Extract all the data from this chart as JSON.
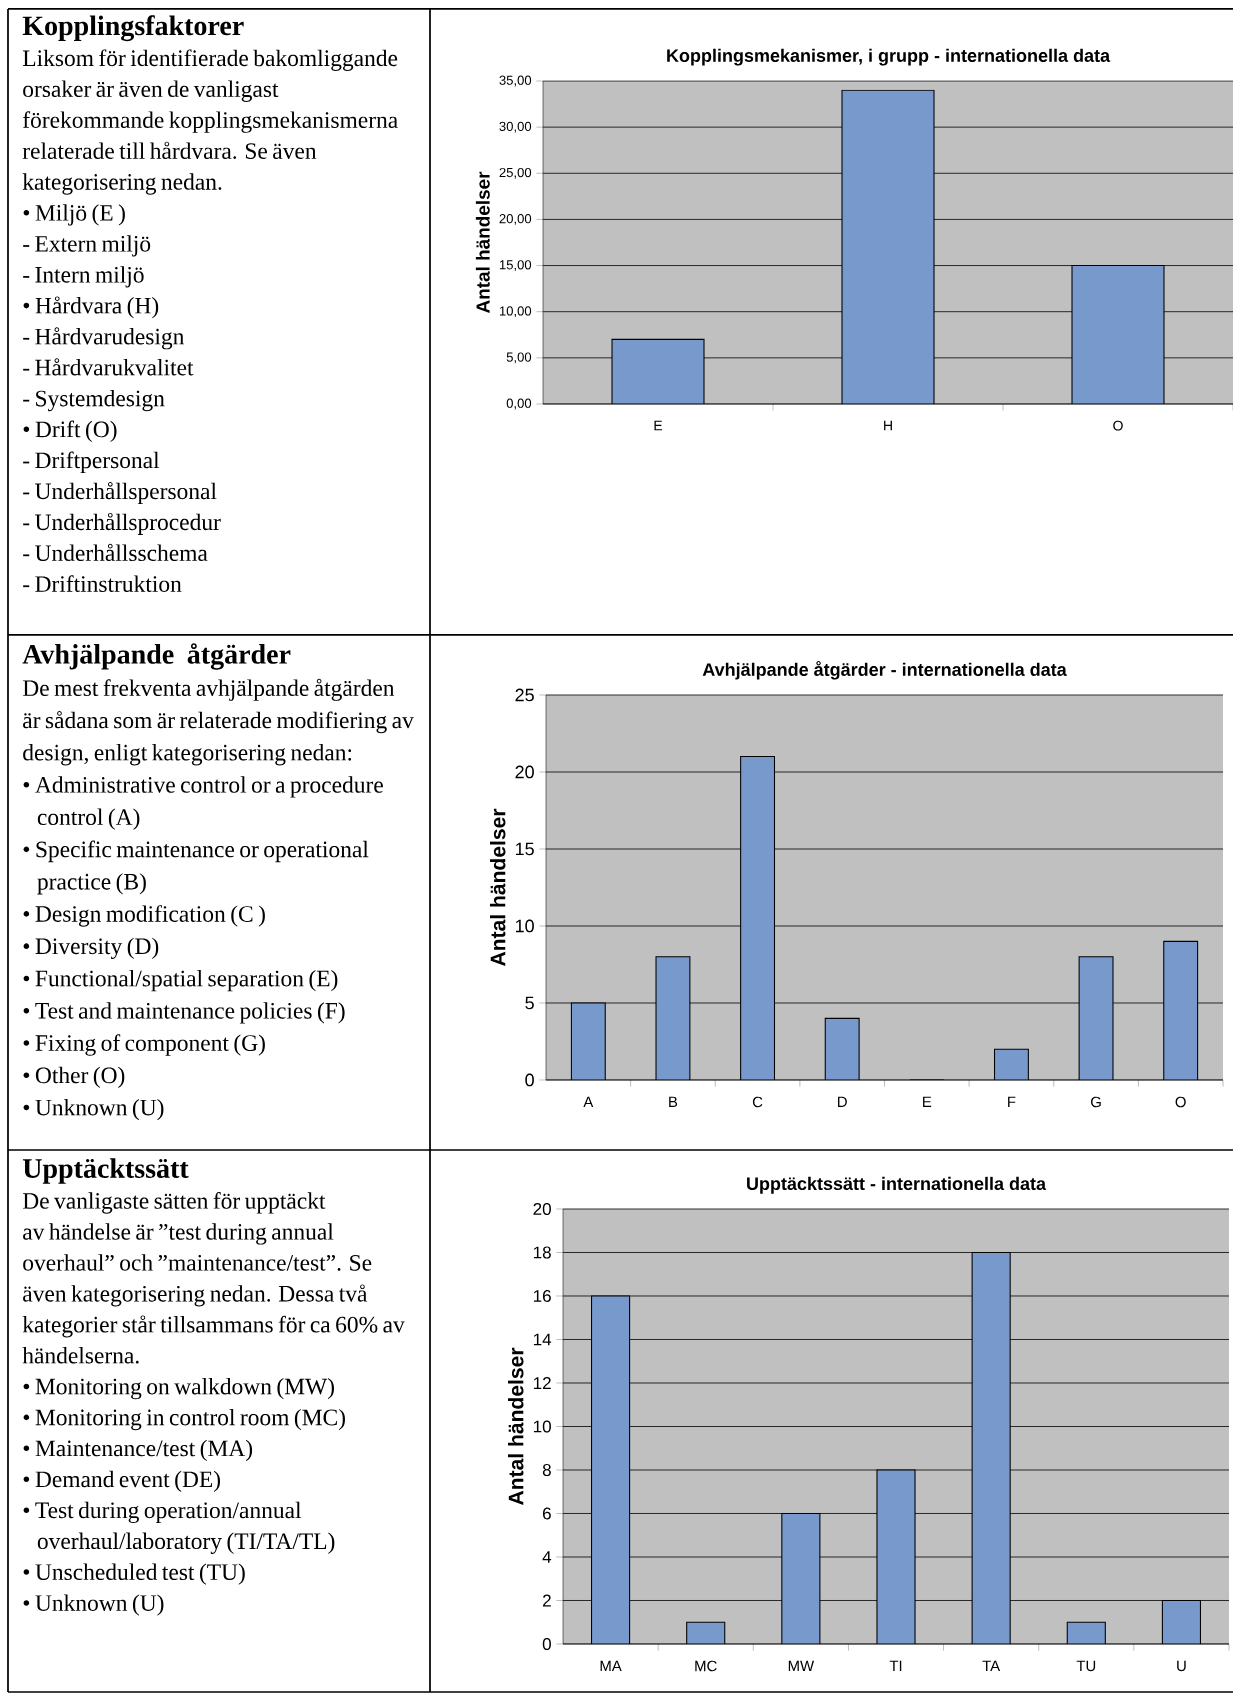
{
  "chart_data": [
    {
      "type": "other",
      "title": "Kopplingsfaktorer",
      "subtitle": "Liksom för identifierade bakomliggande orsaker är även de vanligast förekommande kopplingsmekanismerna relaterade till hårdvara. Se även kategorisering nedan.",
      "annotations": [
        "• Miljö (E )",
        "- Extern miljö",
        "- Intern miljö",
        "• Hårdvara (H)",
        "- Hårdvarudesign",
        "- Hårdvarukvalitet",
        "- Systemdesign",
        "• Drift (O)",
        "- Driftpersonal",
        "- Underhållspersonal",
        "- Underhållsprocedur",
        "- Underhållsschema",
        "- Driftinstruktion"
      ]
    },
    {
      "type": "bar",
      "title": "Kopplingsmekanismer, i grupp - internationella data",
      "ylabel": "Antal händelser",
      "categories": [
        "E",
        "H",
        "O"
      ],
      "values": [
        7,
        34,
        15
      ],
      "color": "#7799cc",
      "ylim": [
        0,
        35
      ],
      "yticks": [
        {
          "value": 0,
          "label": "0,00"
        },
        {
          "value": 5,
          "label": "5,00"
        },
        {
          "value": 10,
          "label": "10,00"
        },
        {
          "value": 15,
          "label": "15,00"
        },
        {
          "value": 20,
          "label": "20,00"
        },
        {
          "value": 25,
          "label": "25,00"
        },
        {
          "value": 30,
          "label": "30,00"
        },
        {
          "value": 35,
          "label": "35,00"
        }
      ],
      "grid": "y"
    },
    {
      "type": "other",
      "title": "Avhjälpande åtgärder",
      "subtitle": "De mest frekventa avhjälpande åtgärden är sådana som är relaterade modifiering av design, enligt kategorisering nedan:",
      "annotations": [
        "• Administrative control or a procedure control (A)",
        "• Specific maintenance or operational practice (B)",
        "• Design modification (C )",
        "• Diversity (D)",
        "• Functional/spatial separation (E)",
        "• Test and maintenance policies (F)",
        "• Fixing of component (G)",
        "• Other (O)",
        "• Unknown (U)"
      ]
    },
    {
      "type": "bar",
      "title": "Avhjälpande åtgärder - internationella data",
      "ylabel": "Antal händelser",
      "categories": [
        "A",
        "B",
        "C",
        "D",
        "E",
        "F",
        "G",
        "O"
      ],
      "values": [
        5,
        8,
        21,
        4,
        0,
        2,
        8,
        9
      ],
      "color": "#7799cc",
      "ylim": [
        0,
        25
      ],
      "yticks": [
        0,
        5,
        10,
        15,
        20,
        25
      ],
      "grid": "y"
    },
    {
      "type": "other",
      "title": "Upptäcktssätt",
      "subtitle": "De vanligaste sätten för upptäckt av händelse är ”test during annual overhaul” och ”maintenance/test”. Se även kategorisering nedan. Dessa två kategorier står tillsammans för ca 60% av händelserna.",
      "annotations": [
        "• Monitoring on walkdown (MW)",
        "• Monitoring in control room (MC)",
        "• Maintenance/test (MA)",
        "• Demand event (DE)",
        "• Test during operation/annual overhaul/laboratory (TI/TA/TL)",
        "• Unscheduled test (TU)",
        "• Unknown (U)"
      ]
    },
    {
      "type": "bar",
      "title": "Upptäcktssätt - internationella data",
      "ylabel": "Antal händelser",
      "categories": [
        "MA",
        "MC",
        "MW",
        "TI",
        "TA",
        "TU",
        "U"
      ],
      "values": [
        16,
        1,
        6,
        8,
        18,
        1,
        2
      ],
      "color": "#7799cc",
      "ylim": [
        0,
        20
      ],
      "yticks": [
        0,
        2,
        4,
        6,
        8,
        10,
        12,
        14,
        16,
        18,
        20
      ],
      "grid": "y"
    }
  ]
}
